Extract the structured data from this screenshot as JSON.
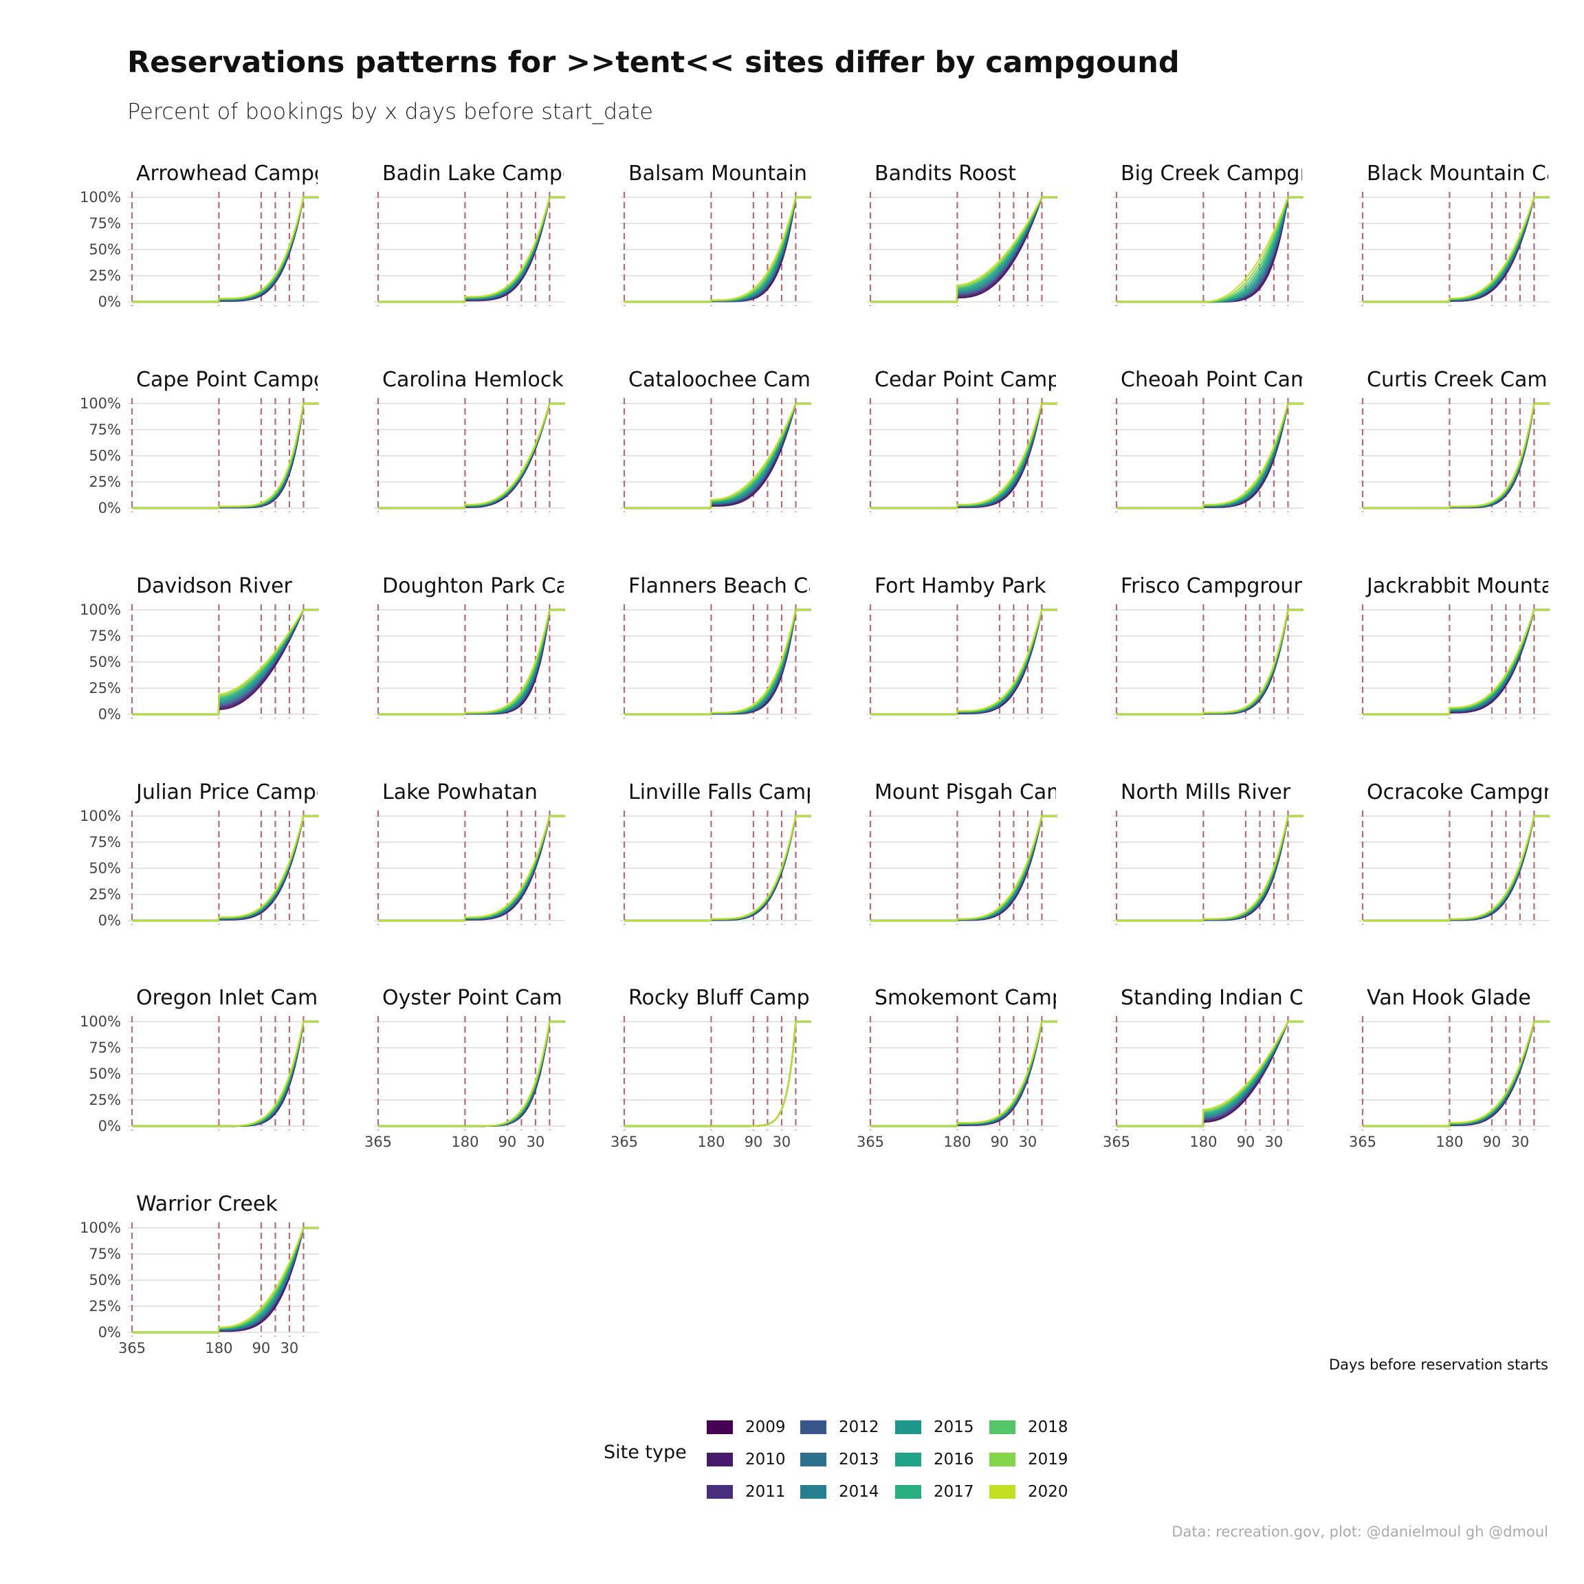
{
  "title": "Reservations patterns for >>tent<< sites differ by campgound",
  "subtitle": "Percent of bookings by x days before start_date",
  "caption_x": "Days before reservation starts",
  "source": "Data: recreation.gov, plot: @danielmoul gh @dmoul",
  "legend": {
    "title": "Site type",
    "items": [
      {
        "label": "2009",
        "color": "#440154"
      },
      {
        "label": "2010",
        "color": "#481a6c"
      },
      {
        "label": "2011",
        "color": "#472f7d"
      },
      {
        "label": "2012",
        "color": "#39568c"
      },
      {
        "label": "2013",
        "color": "#2d6f8e"
      },
      {
        "label": "2014",
        "color": "#277f8e"
      },
      {
        "label": "2015",
        "color": "#1f968b"
      },
      {
        "label": "2016",
        "color": "#20a386"
      },
      {
        "label": "2017",
        "color": "#29af7f"
      },
      {
        "label": "2018",
        "color": "#55c667"
      },
      {
        "label": "2019",
        "color": "#85d54a"
      },
      {
        "label": "2020",
        "color": "#c2df23"
      }
    ]
  },
  "chart_data": {
    "type": "line",
    "facet_by": "campground",
    "x": "days before reservation starts",
    "x_reversed": true,
    "xlim": [
      365,
      -40
    ],
    "x_ticks": [
      "365",
      "180",
      "90",
      "30"
    ],
    "y_ticks": [
      "100%",
      "75%",
      "50%",
      "25%",
      "0%"
    ],
    "ylim": [
      0,
      1
    ],
    "reference_lines_days": [
      365,
      180,
      90,
      60,
      30,
      0
    ],
    "panels": [
      {
        "name": "Arrowhead Campground",
        "start": 0.02,
        "k": 2.2,
        "spread": 0.03
      },
      {
        "name": "Badin Lake Campground",
        "start": 0.03,
        "k": 2.0,
        "spread": 0.04
      },
      {
        "name": "Balsam Mountain Campground",
        "start": 0.01,
        "k": 2.4,
        "spread": 0.09
      },
      {
        "name": "Bandits Roost",
        "start": 0.1,
        "k": 1.1,
        "spread": 0.06
      },
      {
        "name": "Big Creek Campground",
        "start": 0.0,
        "k": 2.0,
        "spread": 0.15
      },
      {
        "name": "Black Mountain Campground",
        "start": 0.02,
        "k": 1.6,
        "spread": 0.05
      },
      {
        "name": "Cape Point Campground",
        "start": 0.01,
        "k": 3.2,
        "spread": 0.04
      },
      {
        "name": "Carolina Hemlocks",
        "start": 0.02,
        "k": 1.6,
        "spread": 0.02
      },
      {
        "name": "Cataloochee Campground",
        "start": 0.05,
        "k": 1.4,
        "spread": 0.07
      },
      {
        "name": "Cedar Point Campground",
        "start": 0.02,
        "k": 2.0,
        "spread": 0.06
      },
      {
        "name": "Cheoah Point Campground",
        "start": 0.02,
        "k": 2.0,
        "spread": 0.06
      },
      {
        "name": "Curtis Creek Campground",
        "start": 0.01,
        "k": 2.8,
        "spread": 0.03
      },
      {
        "name": "Davidson River",
        "start": 0.12,
        "k": 0.9,
        "spread": 0.04
      },
      {
        "name": "Doughton Park Campground",
        "start": 0.01,
        "k": 2.8,
        "spread": 0.08
      },
      {
        "name": "Flanners Beach Campground",
        "start": 0.01,
        "k": 2.6,
        "spread": 0.07
      },
      {
        "name": "Fort Hamby Park",
        "start": 0.02,
        "k": 2.0,
        "spread": 0.04
      },
      {
        "name": "Frisco Campground",
        "start": 0.01,
        "k": 2.6,
        "spread": 0.03
      },
      {
        "name": "Jackrabbit Mountain",
        "start": 0.04,
        "k": 1.6,
        "spread": 0.04
      },
      {
        "name": "Julian Price Campground",
        "start": 0.02,
        "k": 2.0,
        "spread": 0.03
      },
      {
        "name": "Lake Powhatan",
        "start": 0.02,
        "k": 1.9,
        "spread": 0.04
      },
      {
        "name": "Linville Falls Campground",
        "start": 0.01,
        "k": 2.3,
        "spread": 0.02
      },
      {
        "name": "Mount Pisgah Campground",
        "start": 0.01,
        "k": 2.0,
        "spread": 0.05
      },
      {
        "name": "North Mills River",
        "start": 0.01,
        "k": 2.4,
        "spread": 0.04
      },
      {
        "name": "Ocracoke Campground",
        "start": 0.01,
        "k": 2.1,
        "spread": 0.03
      },
      {
        "name": "Oregon Inlet Campground",
        "start": 0.0,
        "k": 2.6,
        "spread": 0.05
      },
      {
        "name": "Oyster Point Campground",
        "start": 0.0,
        "k": 3.0,
        "spread": 0.04
      },
      {
        "name": "Rocky Bluff Campground",
        "start": 0.0,
        "k": 6.0,
        "spread": 0.0
      },
      {
        "name": "Smokemont Campground",
        "start": 0.02,
        "k": 2.3,
        "spread": 0.03
      },
      {
        "name": "Standing Indian Campground",
        "start": 0.1,
        "k": 1.0,
        "spread": 0.03
      },
      {
        "name": "Van Hook Glade",
        "start": 0.02,
        "k": 1.8,
        "spread": 0.03
      },
      {
        "name": "Warrior Creek",
        "start": 0.03,
        "k": 1.6,
        "spread": 0.08
      }
    ]
  }
}
